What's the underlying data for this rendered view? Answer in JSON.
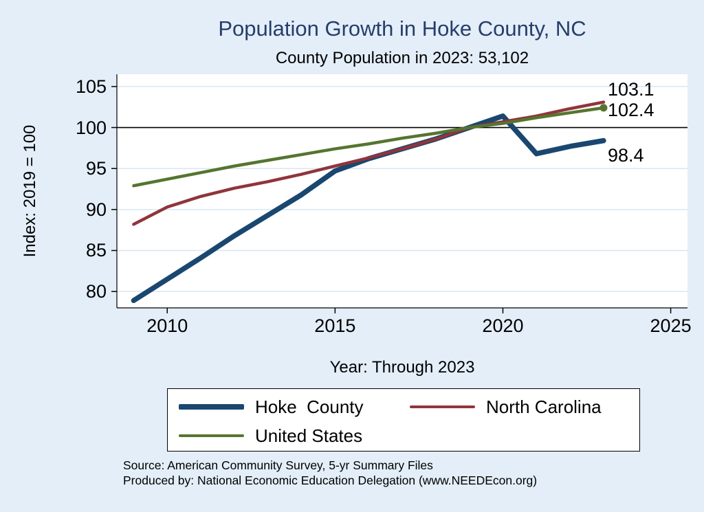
{
  "page": {
    "background": "#e3eef8",
    "plot_background": "#ffffff",
    "gridline_color": "#d8e6f3",
    "axis_color": "#000000",
    "title_color": "#273d6b"
  },
  "chart_data": {
    "type": "line",
    "title": "Population Growth in Hoke County, NC",
    "subtitle": "County Population in 2023: 53,102",
    "xlabel": "Year: Through 2023",
    "ylabel": "Index: 2019 = 100",
    "x": [
      2009,
      2010,
      2011,
      2012,
      2013,
      2014,
      2015,
      2016,
      2017,
      2018,
      2019,
      2020,
      2021,
      2022,
      2023
    ],
    "x_ticks": [
      2010,
      2015,
      2020,
      2025
    ],
    "y_ticks": [
      80,
      85,
      90,
      95,
      100,
      105
    ],
    "xlim": [
      2008.5,
      2025.5
    ],
    "ylim": [
      78,
      106.5
    ],
    "grid": "horizontal",
    "reference_line_y": 100,
    "legend_position": "bottom",
    "series": [
      {
        "name": "Hoke  County",
        "color": "#1a476f",
        "line_width": 7.5,
        "end_dot": false,
        "values": [
          78.9,
          81.5,
          84.1,
          86.8,
          89.3,
          91.8,
          94.7,
          96.2,
          97.4,
          98.6,
          100.0,
          101.4,
          96.8,
          97.7,
          98.4
        ]
      },
      {
        "name": "North Carolina",
        "color": "#90353b",
        "line_width": 4.5,
        "end_dot": false,
        "values": [
          88.2,
          90.3,
          91.6,
          92.6,
          93.4,
          94.3,
          95.3,
          96.3,
          97.4,
          98.6,
          100.0,
          100.7,
          101.4,
          102.3,
          103.1
        ]
      },
      {
        "name": "United States",
        "color": "#55752f",
        "line_width": 4.5,
        "end_dot": true,
        "values": [
          92.9,
          93.7,
          94.5,
          95.3,
          96.0,
          96.7,
          97.4,
          98.0,
          98.7,
          99.3,
          100.0,
          100.5,
          101.2,
          101.8,
          102.4
        ]
      }
    ],
    "end_labels": [
      {
        "text": "103.1",
        "series": "North Carolina"
      },
      {
        "text": "102.4",
        "series": "United States"
      },
      {
        "text": "98.4",
        "series": "Hoke  County"
      }
    ]
  },
  "footer": {
    "source": "Source: American Community Survey, 5-yr Summary Files",
    "produced_by": "Produced by: National Economic Education Delegation (www.NEEDEcon.org)"
  }
}
